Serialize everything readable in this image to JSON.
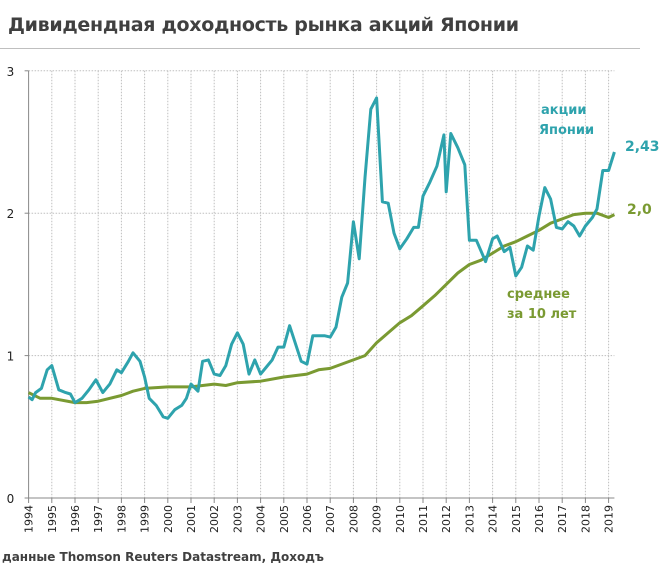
{
  "title": "Дивидендная доходность рынка акций Японии",
  "source": "данные Thomson Reuters Datastream, Доходъ",
  "chart_data": {
    "type": "line",
    "title": "Дивидендная доходность рынка акций Японии",
    "xlabel": "",
    "ylabel": "",
    "xlim": [
      1994,
      2019.25
    ],
    "ylim": [
      0,
      3
    ],
    "yticks": [
      "0",
      "1",
      "2",
      "3"
    ],
    "xticks": [
      "1994",
      "1995",
      "1996",
      "1997",
      "1998",
      "1999",
      "2000",
      "2001",
      "2002",
      "2003",
      "2004",
      "2005",
      "2006",
      "2007",
      "2008",
      "2009",
      "2010",
      "2011",
      "2012",
      "2013",
      "2014",
      "2015",
      "2016",
      "2017",
      "2018",
      "2019"
    ],
    "grid": true,
    "series": [
      {
        "name": "акции Японии",
        "name_lines": [
          "акции",
          "Японии"
        ],
        "color": "#2ea3ad",
        "end_label": "2,43",
        "x": [
          1994.0,
          1994.15,
          1994.3,
          1994.55,
          1994.8,
          1995.0,
          1995.3,
          1995.6,
          1995.8,
          1996.0,
          1996.3,
          1996.6,
          1996.9,
          1997.2,
          1997.5,
          1997.8,
          1998.0,
          1998.3,
          1998.5,
          1998.8,
          1999.0,
          1999.2,
          1999.5,
          1999.8,
          2000.0,
          2000.3,
          2000.6,
          2000.8,
          2001.0,
          2001.3,
          2001.5,
          2001.75,
          2002.0,
          2002.25,
          2002.5,
          2002.75,
          2003.0,
          2003.25,
          2003.5,
          2003.75,
          2004.0,
          2004.25,
          2004.5,
          2004.75,
          2005.0,
          2005.25,
          2005.75,
          2006.0,
          2006.25,
          2006.75,
          2007.0,
          2007.25,
          2007.5,
          2007.75,
          2008.0,
          2008.25,
          2008.5,
          2008.75,
          2009.0,
          2009.25,
          2009.5,
          2009.75,
          2010.0,
          2010.3,
          2010.6,
          2010.8,
          2011.0,
          2011.3,
          2011.6,
          2011.9,
          2012.0,
          2012.2,
          2012.5,
          2012.8,
          2013.0,
          2013.3,
          2013.7,
          2014.0,
          2014.2,
          2014.5,
          2014.75,
          2015.0,
          2015.25,
          2015.5,
          2015.75,
          2016.0,
          2016.25,
          2016.5,
          2016.75,
          2017.0,
          2017.25,
          2017.5,
          2017.75,
          2018.0,
          2018.3,
          2018.5,
          2018.75,
          2019.0,
          2019.25
        ],
        "y": [
          0.71,
          0.69,
          0.74,
          0.77,
          0.9,
          0.93,
          0.76,
          0.74,
          0.73,
          0.67,
          0.7,
          0.76,
          0.83,
          0.74,
          0.8,
          0.9,
          0.88,
          0.96,
          1.02,
          0.96,
          0.85,
          0.7,
          0.65,
          0.57,
          0.56,
          0.62,
          0.65,
          0.7,
          0.8,
          0.75,
          0.96,
          0.97,
          0.87,
          0.86,
          0.93,
          1.08,
          1.16,
          1.08,
          0.87,
          0.97,
          0.87,
          0.92,
          0.97,
          1.06,
          1.06,
          1.21,
          0.96,
          0.94,
          1.14,
          1.14,
          1.13,
          1.2,
          1.41,
          1.51,
          1.94,
          1.68,
          2.25,
          2.73,
          2.81,
          2.08,
          2.07,
          1.86,
          1.75,
          1.82,
          1.9,
          1.9,
          2.12,
          2.22,
          2.33,
          2.55,
          2.15,
          2.56,
          2.46,
          2.34,
          1.81,
          1.81,
          1.66,
          1.82,
          1.84,
          1.73,
          1.76,
          1.56,
          1.62,
          1.77,
          1.74,
          1.98,
          2.18,
          2.1,
          1.9,
          1.89,
          1.94,
          1.91,
          1.84,
          1.91,
          1.97,
          2.03,
          2.3,
          2.3,
          2.43
        ]
      },
      {
        "name": "среднее за 10 лет",
        "name_lines": [
          "среднее",
          "за 10 лет"
        ],
        "color": "#7a9a32",
        "end_label": "2,0",
        "x": [
          1994,
          1994.5,
          1995,
          1996,
          1996.5,
          1997,
          1998,
          1998.5,
          1999,
          2000,
          2001,
          2002,
          2002.5,
          2003,
          2004,
          2005,
          2006,
          2006.5,
          2007,
          2008,
          2008.5,
          2009,
          2009.5,
          2010,
          2010.5,
          2011,
          2011.5,
          2012,
          2012.5,
          2013,
          2013.5,
          2014,
          2014.5,
          2015,
          2015.5,
          2016,
          2016.5,
          2017,
          2017.5,
          2018,
          2018.5,
          2019,
          2019.25
        ],
        "y": [
          0.74,
          0.7,
          0.7,
          0.67,
          0.67,
          0.68,
          0.72,
          0.75,
          0.77,
          0.78,
          0.78,
          0.8,
          0.79,
          0.81,
          0.82,
          0.85,
          0.87,
          0.9,
          0.91,
          0.97,
          1.0,
          1.09,
          1.16,
          1.23,
          1.28,
          1.35,
          1.42,
          1.5,
          1.58,
          1.64,
          1.67,
          1.72,
          1.77,
          1.8,
          1.84,
          1.88,
          1.93,
          1.96,
          1.99,
          2.0,
          2.0,
          1.97,
          1.99
        ]
      }
    ]
  }
}
